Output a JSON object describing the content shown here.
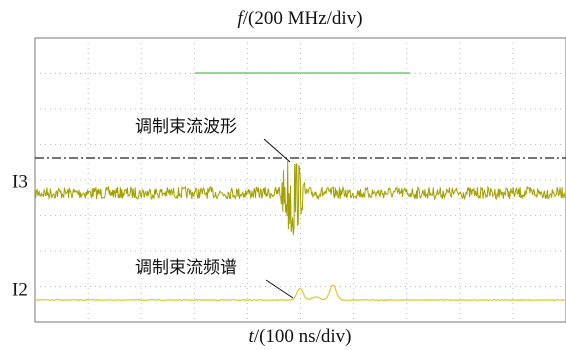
{
  "top_label": {
    "symbol": "f",
    "unit": "/(200 MHz/div)"
  },
  "bottom_label": {
    "symbol": "t",
    "unit": "/(100 ns/div)"
  },
  "channels": [
    "I3",
    "I2"
  ],
  "annotations": [
    "调制束流波形",
    "调制束流频谱"
  ]
}
